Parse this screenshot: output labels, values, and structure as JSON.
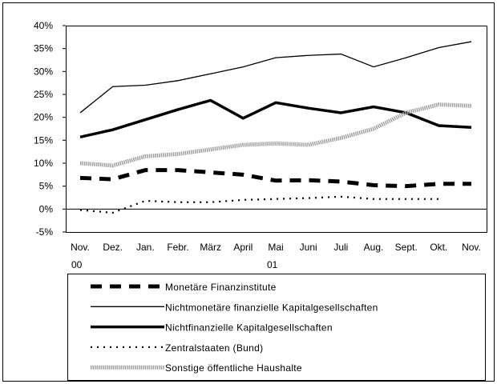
{
  "chart_data": {
    "type": "line",
    "categories": [
      "Nov. 00",
      "Dez.",
      "Jan.",
      "Febr.",
      "März",
      "April",
      "Mai 01",
      "Juni",
      "Juli",
      "Aug.",
      "Sept.",
      "Okt.",
      "Nov."
    ],
    "ylim": [
      -5,
      40
    ],
    "yticks": [
      {
        "value": -5,
        "label": "-5%"
      },
      {
        "value": 0,
        "label": "0%"
      },
      {
        "value": 5,
        "label": "5%"
      },
      {
        "value": 10,
        "label": "10%"
      },
      {
        "value": 15,
        "label": "15%"
      },
      {
        "value": 20,
        "label": "20%"
      },
      {
        "value": 25,
        "label": "25%"
      },
      {
        "value": 30,
        "label": "30%"
      },
      {
        "value": 35,
        "label": "35%"
      },
      {
        "value": 40,
        "label": "40%"
      }
    ],
    "legend": "bottom",
    "series": [
      {
        "name": "Monetäre Finanzinstitute",
        "color": "#000000",
        "style": "dashed-thick",
        "values": [
          6.8,
          6.5,
          8.5,
          8.5,
          8.0,
          7.5,
          6.2,
          6.3,
          6.0,
          5.2,
          5.0,
          5.5,
          5.5
        ]
      },
      {
        "name": "Nichtmonetäre finanzielle Kapitalgesellschaften",
        "color": "#000000",
        "style": "thin",
        "values": [
          21.0,
          26.7,
          27.0,
          28.0,
          29.5,
          31.0,
          33.0,
          33.5,
          33.8,
          31.0,
          33.0,
          35.2,
          36.5
        ]
      },
      {
        "name": "Nichtfinanzielle Kapitalgesellschaften",
        "color": "#000000",
        "style": "thick",
        "values": [
          15.7,
          17.3,
          19.5,
          21.7,
          23.7,
          19.8,
          23.2,
          22.0,
          21.0,
          22.3,
          21.0,
          18.2,
          17.8
        ]
      },
      {
        "name": "Zentralstaaten (Bund)",
        "color": "#000000",
        "style": "dotted",
        "values": [
          -0.2,
          -0.8,
          1.8,
          1.5,
          1.5,
          2.0,
          2.2,
          2.4,
          2.7,
          2.2,
          2.2,
          2.2,
          null
        ]
      },
      {
        "name": "Sonstige öffentliche Haushalte",
        "color": "#a0a0a0",
        "style": "hatched",
        "values": [
          10.0,
          9.5,
          11.5,
          12.0,
          13.0,
          14.0,
          14.3,
          14.0,
          15.5,
          17.5,
          21.0,
          22.8,
          22.5
        ]
      }
    ]
  }
}
